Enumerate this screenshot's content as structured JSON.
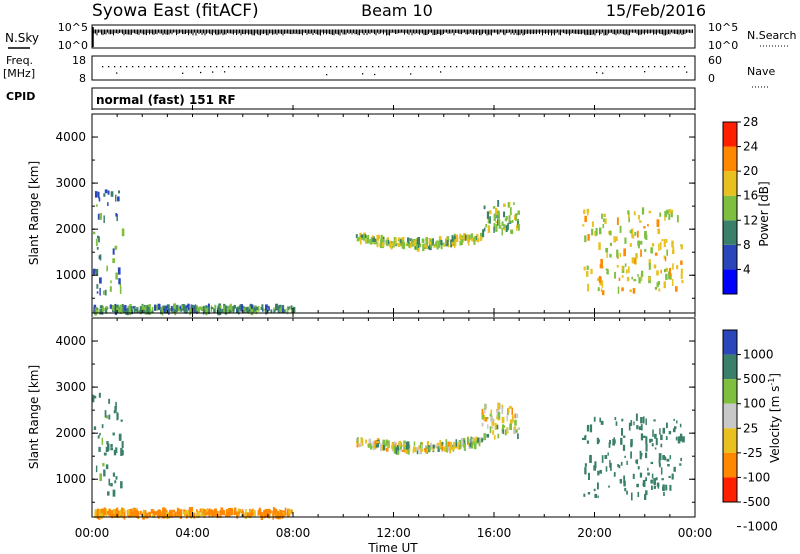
{
  "header": {
    "station": "Syowa East (fitACF)",
    "beam": "Beam 10",
    "date": "15/Feb/2016"
  },
  "noise_panel": {
    "left_label": "N.Sky",
    "right_label": "N.Search",
    "ticks_left": [
      "10^5",
      "10^0"
    ],
    "ticks_right": [
      "10^5",
      "10^0"
    ]
  },
  "freq_panel": {
    "left_label_1": "Freq.",
    "left_label_2": "[MHz]",
    "right_label": "Nave",
    "ticks_left": [
      "18",
      "8"
    ],
    "ticks_right": [
      "60",
      "0"
    ]
  },
  "cpid_panel": {
    "left_label": "CPID",
    "mode_text": "normal (fast) 151 RF"
  },
  "x_axis": {
    "label": "Time UT",
    "ticks": [
      "00:00",
      "04:00",
      "08:00",
      "12:00",
      "16:00",
      "20:00",
      "00:00"
    ],
    "range_hours": [
      0,
      24
    ]
  },
  "chart_data": [
    {
      "type": "heatmap",
      "title": "Power",
      "xlabel": "Time UT",
      "ylabel": "Slant Range [km]",
      "colorbar_label": "Power [dB]",
      "y_ticks": [
        "1000",
        "2000",
        "3000",
        "4000"
      ],
      "ylim": [
        180,
        4500
      ],
      "colorbar_ticks": [
        "4",
        "8",
        "12",
        "16",
        "20",
        "24",
        "28"
      ],
      "colorbar_range": [
        0,
        30
      ],
      "colorbar_colors": [
        "#0000ff",
        "#2a46b8",
        "#3a7f6a",
        "#7fbf3f",
        "#e8c020",
        "#ff8800",
        "#ff2000"
      ],
      "features": [
        {
          "name": "near-range echoes",
          "hours": [
            0.0,
            8.0
          ],
          "range_km": [
            200,
            320
          ],
          "value": 12
        },
        {
          "name": "early scatter",
          "hours": [
            0.0,
            1.2
          ],
          "range_km": [
            600,
            2900
          ],
          "value": 10
        },
        {
          "name": "evening arc",
          "hours": [
            10.5,
            15.5
          ],
          "range_km": [
            1500,
            1850
          ],
          "value": 16
        },
        {
          "name": "post-arc band",
          "hours": [
            15.5,
            17.0
          ],
          "range_km": [
            1900,
            2600
          ],
          "value": 14
        },
        {
          "name": "night patch",
          "hours": [
            19.5,
            23.5
          ],
          "range_km": [
            600,
            2400
          ],
          "value": 18
        }
      ]
    },
    {
      "type": "heatmap",
      "title": "Velocity",
      "xlabel": "Time UT",
      "ylabel": "Slant Range [km]",
      "colorbar_label": "Velocity [m s",
      "colorbar_label_exp": "-1",
      "colorbar_label_end": "]",
      "y_ticks": [
        "1000",
        "2000",
        "3000",
        "4000"
      ],
      "ylim": [
        180,
        4500
      ],
      "colorbar_ticks": [
        "1000",
        "500",
        "100",
        "25",
        "-25",
        "-100",
        "-500",
        "-1000"
      ],
      "colorbar_colors": [
        "#2a46b8",
        "#3a7f6a",
        "#7fbf3f",
        "#c8c8c8",
        "#e8c020",
        "#ff8800",
        "#ff2000"
      ],
      "features": [
        {
          "name": "near-range echoes",
          "hours": [
            0.0,
            8.0
          ],
          "range_km": [
            200,
            320
          ],
          "value": -150
        },
        {
          "name": "early scatter",
          "hours": [
            0.0,
            1.2
          ],
          "range_km": [
            600,
            2900
          ],
          "value": 200
        },
        {
          "name": "evening arc",
          "hours": [
            10.5,
            15.5
          ],
          "range_km": [
            1500,
            1850
          ],
          "value": 0
        },
        {
          "name": "post-arc band",
          "hours": [
            15.5,
            17.0
          ],
          "range_km": [
            1900,
            2600
          ],
          "value": 0
        },
        {
          "name": "night patch",
          "hours": [
            19.5,
            23.5
          ],
          "range_km": [
            600,
            2400
          ],
          "value": 300
        }
      ]
    }
  ]
}
